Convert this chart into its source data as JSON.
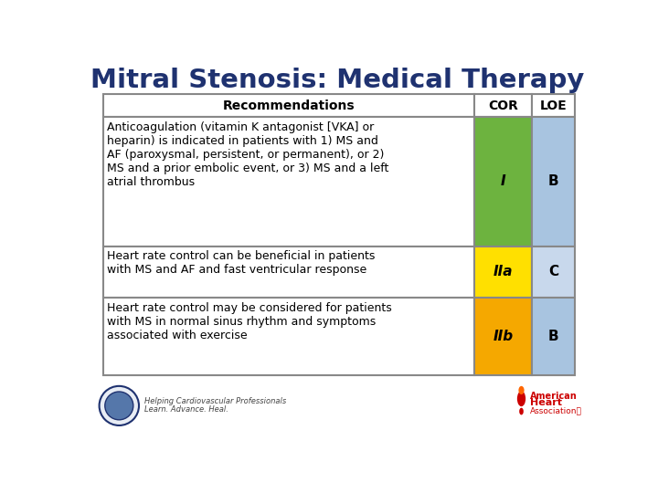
{
  "title": "Mitral Stenosis: Medical Therapy",
  "title_color": "#1F3270",
  "title_fontsize": 21,
  "background_color": "#FFFFFF",
  "border_color": "#888888",
  "col_headers": [
    "Recommendations",
    "COR",
    "LOE"
  ],
  "rec_texts": [
    "Anticoagulation (vitamin K antagonist [VKA] or\nheparin) is indicated in patients with 1) MS and\nAF (paroxysmal, persistent, or permanent), or 2)\nMS and a prior embolic event, or 3) MS and a left\natrial thrombus",
    "Heart rate control can be beneficial in patients\nwith MS and AF and fast ventricular response",
    "Heart rate control may be considered for patients\nwith MS in normal sinus rhythm and symptoms\nassociated with exercise"
  ],
  "cor_values": [
    "I",
    "IIa",
    "IIb"
  ],
  "loe_values": [
    "B",
    "C",
    "B"
  ],
  "cor_colors": [
    "#6DB33F",
    "#FFE000",
    "#F5A800"
  ],
  "loe_colors": [
    "#A8C4E0",
    "#C8D8EC",
    "#A8C4E0"
  ],
  "header_fontsize": 10,
  "rec_fontsize": 9,
  "cor_loe_fontsize": 11,
  "footer_text1": "Helping Cardiovascular Professionals",
  "footer_text2": "Learn. Advance. Heal."
}
